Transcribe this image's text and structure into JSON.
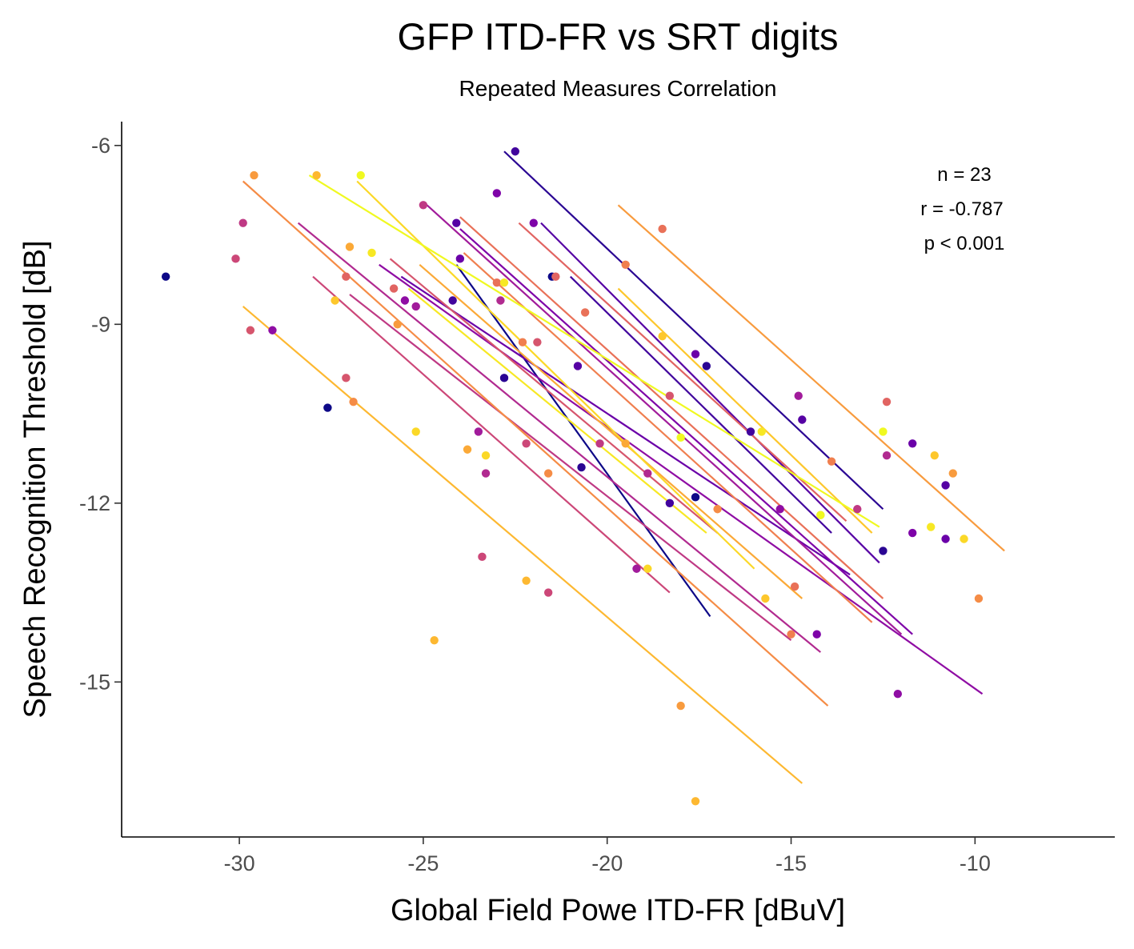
{
  "chart_data": {
    "type": "scatter",
    "title": "GFP ITD-FR vs SRT digits",
    "subtitle": "Repeated Measures Correlation",
    "xlabel": "Global Field Powe ITD-FR [dBuV]",
    "ylabel": "Speech Recognition Threshold [dB]",
    "xlim": [
      -33.2,
      -6.2
    ],
    "ylim": [
      -17.6,
      -5.6
    ],
    "xticks": [
      -30,
      -25,
      -20,
      -15,
      -10
    ],
    "yticks": [
      -6,
      -9,
      -12,
      -15
    ],
    "xtick_labels": [
      "-30",
      "-25",
      "-20",
      "-15",
      "-10"
    ],
    "ytick_labels": [
      "-6",
      "-9",
      "-12",
      "-15"
    ],
    "grid": false,
    "legend": "none",
    "palette": "plasma",
    "annotations": [
      "n = 23",
      "r = -0.787",
      "p < 0.001"
    ],
    "series": [
      {
        "color": "#0d0887",
        "points": [
          [
            -32.0,
            -8.2
          ],
          [
            -27.6,
            -10.4
          ],
          [
            -21.5,
            -8.2
          ],
          [
            -17.6,
            -11.9
          ]
        ],
        "line": [
          [
            -24.1,
            -8.0
          ],
          [
            -17.2,
            -13.9
          ]
        ]
      },
      {
        "color": "#2a0593",
        "points": [
          [
            -22.8,
            -9.9
          ],
          [
            -20.7,
            -11.4
          ],
          [
            -17.3,
            -9.7
          ],
          [
            -12.5,
            -12.8
          ]
        ],
        "line": [
          [
            -22.8,
            -6.1
          ],
          [
            -12.5,
            -12.1
          ]
        ]
      },
      {
        "color": "#41049d",
        "points": [
          [
            -22.5,
            -6.1
          ],
          [
            -24.2,
            -8.6
          ],
          [
            -18.3,
            -12.0
          ],
          [
            -16.1,
            -10.8
          ]
        ],
        "line": [
          [
            -21.0,
            -8.2
          ],
          [
            -13.9,
            -12.5
          ]
        ]
      },
      {
        "color": "#5601a4",
        "points": [
          [
            -24.1,
            -7.3
          ],
          [
            -20.8,
            -9.7
          ],
          [
            -14.7,
            -10.6
          ],
          [
            -10.8,
            -11.7
          ]
        ],
        "line": [
          [
            -21.8,
            -7.3
          ],
          [
            -12.6,
            -13.0
          ]
        ]
      },
      {
        "color": "#6a00a8",
        "points": [
          [
            -24.0,
            -7.9
          ],
          [
            -17.6,
            -9.5
          ],
          [
            -11.7,
            -11.0
          ],
          [
            -10.8,
            -12.6
          ]
        ],
        "line": [
          [
            -25.6,
            -8.2
          ],
          [
            -13.4,
            -13.2
          ]
        ]
      },
      {
        "color": "#7e03a8",
        "points": [
          [
            -23.0,
            -6.8
          ],
          [
            -22.0,
            -7.3
          ],
          [
            -14.3,
            -14.2
          ],
          [
            -11.7,
            -12.5
          ]
        ],
        "line": [
          [
            -24.0,
            -7.4
          ],
          [
            -11.7,
            -14.2
          ]
        ]
      },
      {
        "color": "#8f0da4",
        "points": [
          [
            -29.1,
            -9.1
          ],
          [
            -25.5,
            -8.6
          ],
          [
            -15.3,
            -12.1
          ],
          [
            -12.1,
            -15.2
          ]
        ],
        "line": [
          [
            -26.2,
            -8.0
          ],
          [
            -9.8,
            -15.2
          ]
        ]
      },
      {
        "color": "#a11b9b",
        "points": [
          [
            -25.2,
            -8.7
          ],
          [
            -23.5,
            -10.8
          ],
          [
            -19.2,
            -13.1
          ],
          [
            -14.8,
            -10.2
          ]
        ],
        "line": [
          [
            -24.9,
            -7.0
          ],
          [
            -12.0,
            -14.2
          ]
        ]
      },
      {
        "color": "#b12a90",
        "points": [
          [
            -23.3,
            -11.5
          ],
          [
            -22.9,
            -8.6
          ],
          [
            -18.9,
            -11.5
          ],
          [
            -12.4,
            -11.2
          ]
        ],
        "line": [
          [
            -28.4,
            -7.3
          ],
          [
            -14.2,
            -14.5
          ]
        ]
      },
      {
        "color": "#bf3984",
        "points": [
          [
            -29.9,
            -7.3
          ],
          [
            -25.0,
            -7.0
          ],
          [
            -20.2,
            -11.0
          ],
          [
            -13.2,
            -12.1
          ]
        ],
        "line": [
          [
            -27.0,
            -8.5
          ],
          [
            -15.0,
            -14.3
          ]
        ]
      },
      {
        "color": "#cc4778",
        "points": [
          [
            -30.1,
            -7.9
          ],
          [
            -23.4,
            -12.9
          ],
          [
            -22.2,
            -11.0
          ],
          [
            -21.6,
            -13.5
          ]
        ],
        "line": [
          [
            -28.0,
            -8.2
          ],
          [
            -18.3,
            -13.5
          ]
        ]
      },
      {
        "color": "#d6556d",
        "points": [
          [
            -29.7,
            -9.1
          ],
          [
            -27.1,
            -9.9
          ],
          [
            -21.9,
            -9.3
          ],
          [
            -18.3,
            -10.2
          ]
        ],
        "line": [
          [
            -25.9,
            -7.9
          ],
          [
            -17.0,
            -12.5
          ]
        ]
      },
      {
        "color": "#e16462",
        "points": [
          [
            -27.1,
            -8.2
          ],
          [
            -25.8,
            -8.4
          ],
          [
            -21.4,
            -8.2
          ],
          [
            -12.4,
            -10.3
          ]
        ],
        "line": [
          [
            -22.4,
            -7.3
          ],
          [
            -13.5,
            -12.3
          ]
        ]
      },
      {
        "color": "#e97158",
        "points": [
          [
            -23.0,
            -8.3
          ],
          [
            -20.6,
            -8.8
          ],
          [
            -18.5,
            -7.4
          ],
          [
            -14.9,
            -13.4
          ]
        ],
        "line": [
          [
            -24.0,
            -7.2
          ],
          [
            -12.5,
            -13.6
          ]
        ]
      },
      {
        "color": "#f07f4f",
        "points": [
          [
            -22.3,
            -9.3
          ],
          [
            -19.5,
            -8.0
          ],
          [
            -15.0,
            -14.2
          ],
          [
            -13.9,
            -11.3
          ]
        ],
        "line": [
          [
            -23.9,
            -7.8
          ],
          [
            -12.8,
            -14.0
          ]
        ]
      },
      {
        "color": "#f58c46",
        "points": [
          [
            -26.9,
            -10.3
          ],
          [
            -21.6,
            -11.5
          ],
          [
            -17.0,
            -12.1
          ],
          [
            -9.9,
            -13.6
          ]
        ],
        "line": [
          [
            -29.9,
            -6.6
          ],
          [
            -14.0,
            -15.4
          ]
        ]
      },
      {
        "color": "#f89b3e",
        "points": [
          [
            -29.6,
            -6.5
          ],
          [
            -25.7,
            -9.0
          ],
          [
            -18.0,
            -15.4
          ],
          [
            -10.6,
            -11.5
          ]
        ],
        "line": [
          [
            -19.7,
            -7.0
          ],
          [
            -9.2,
            -12.8
          ]
        ]
      },
      {
        "color": "#fba937",
        "points": [
          [
            -27.0,
            -7.7
          ],
          [
            -23.8,
            -11.1
          ],
          [
            -19.5,
            -11.0
          ],
          [
            -14.2,
            -12.2
          ]
        ],
        "line": [
          [
            -25.1,
            -8.0
          ],
          [
            -14.7,
            -13.6
          ]
        ]
      },
      {
        "color": "#fdb831",
        "points": [
          [
            -27.9,
            -6.5
          ],
          [
            -24.7,
            -14.3
          ],
          [
            -22.2,
            -13.3
          ],
          [
            -17.6,
            -17.0
          ]
        ],
        "line": [
          [
            -29.9,
            -8.7
          ],
          [
            -14.7,
            -16.7
          ]
        ]
      },
      {
        "color": "#fdc72c",
        "points": [
          [
            -27.4,
            -8.6
          ],
          [
            -18.5,
            -9.2
          ],
          [
            -15.7,
            -13.6
          ],
          [
            -11.1,
            -11.2
          ]
        ],
        "line": [
          [
            -19.7,
            -8.4
          ],
          [
            -12.8,
            -12.5
          ]
        ]
      },
      {
        "color": "#fbd827",
        "points": [
          [
            -25.2,
            -10.8
          ],
          [
            -23.3,
            -11.2
          ],
          [
            -18.9,
            -13.1
          ],
          [
            -10.3,
            -12.6
          ]
        ],
        "line": [
          [
            -26.8,
            -6.6
          ],
          [
            -16.0,
            -13.1
          ]
        ]
      },
      {
        "color": "#f7e824",
        "points": [
          [
            -26.4,
            -7.8
          ],
          [
            -22.8,
            -8.3
          ],
          [
            -15.8,
            -10.8
          ],
          [
            -11.2,
            -12.4
          ]
        ],
        "line": [
          [
            -25.4,
            -8.4
          ],
          [
            -17.3,
            -12.5
          ]
        ]
      },
      {
        "color": "#f0f921",
        "points": [
          [
            -26.7,
            -6.5
          ],
          [
            -18.0,
            -10.9
          ],
          [
            -12.5,
            -10.8
          ],
          [
            -14.2,
            -12.2
          ]
        ],
        "line": [
          [
            -28.1,
            -6.5
          ],
          [
            -12.6,
            -12.4
          ]
        ]
      }
    ]
  }
}
